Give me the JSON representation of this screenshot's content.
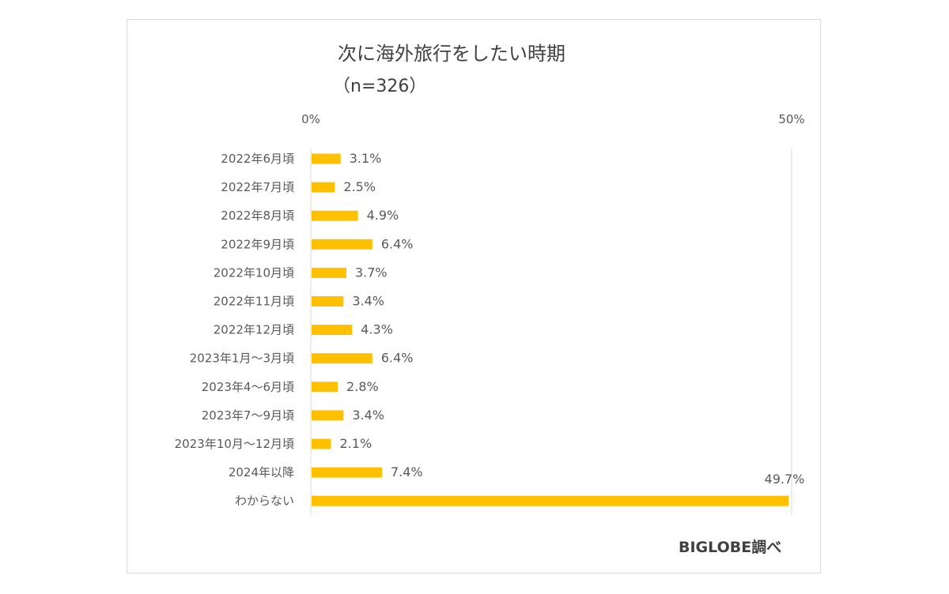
{
  "chart_data": {
    "type": "bar",
    "orientation": "horizontal",
    "title": "次に海外旅行をしたい時期",
    "subtitle": "（n=326）",
    "categories": [
      "2022年6月頃",
      "2022年7月頃",
      "2022年8月頃",
      "2022年9月頃",
      "2022年10月頃",
      "2022年11月頃",
      "2022年12月頃",
      "2023年1月～3月頃",
      "2023年4～6月頃",
      "2023年7～9月頃",
      "2023年10月～12月頃",
      "2024年以降",
      "わからない"
    ],
    "values": [
      3.1,
      2.5,
      4.9,
      6.4,
      3.7,
      3.4,
      4.3,
      6.4,
      2.8,
      3.4,
      2.1,
      7.4,
      49.7
    ],
    "value_labels": [
      "3.1%",
      "2.5%",
      "4.9%",
      "6.4%",
      "3.7%",
      "3.4%",
      "4.3%",
      "6.4%",
      "2.8%",
      "3.4%",
      "2.1%",
      "7.4%",
      "49.7%"
    ],
    "xlim": [
      0,
      50
    ],
    "tick_labels": [
      "0%",
      "50%"
    ],
    "gridlines": true,
    "bar_color": "#ffc000",
    "axis_position": "top",
    "credit": "BIGLOBE調べ"
  }
}
